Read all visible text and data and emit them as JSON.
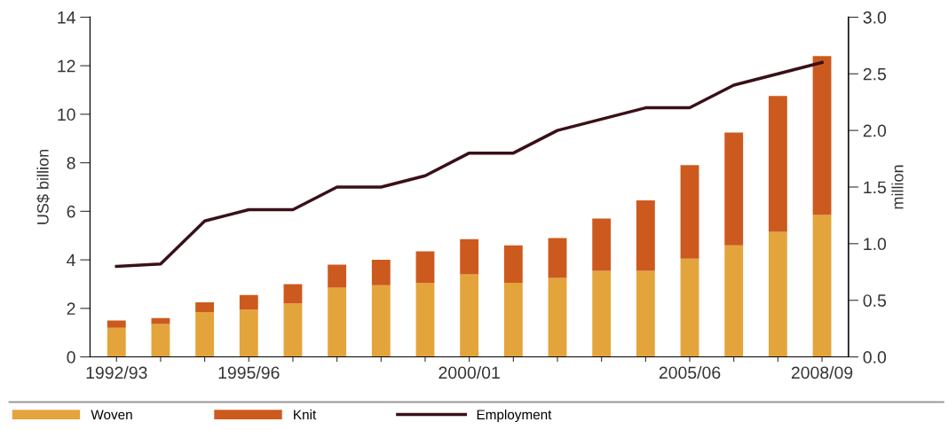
{
  "chart_data": {
    "type": "bar",
    "stacked": true,
    "ylabel": "US$ billion",
    "y2label": "million",
    "categories": [
      "1992/93",
      null,
      null,
      "1995/96",
      null,
      null,
      null,
      null,
      "2000/01",
      null,
      null,
      null,
      null,
      "2005/06",
      null,
      null,
      "2008/09"
    ],
    "series": [
      {
        "name": "Woven",
        "color": "#e4a43c",
        "values": [
          1.2,
          1.35,
          1.85,
          1.95,
          2.2,
          2.85,
          2.95,
          3.05,
          3.4,
          3.05,
          3.25,
          3.55,
          3.55,
          4.05,
          4.6,
          5.15,
          5.85
        ]
      },
      {
        "name": "Knit",
        "color": "#cc5a1e",
        "values": [
          0.3,
          0.25,
          0.4,
          0.6,
          0.8,
          0.95,
          1.05,
          1.3,
          1.45,
          1.55,
          1.65,
          2.15,
          2.9,
          3.85,
          4.65,
          5.6,
          6.55
        ]
      },
      {
        "name": "Employment",
        "type": "line",
        "axis": "y2",
        "color": "#3a1018",
        "values": [
          0.8,
          0.82,
          1.2,
          1.3,
          1.3,
          1.5,
          1.5,
          1.6,
          1.8,
          1.8,
          2.0,
          2.1,
          2.2,
          2.2,
          2.4,
          2.5,
          2.6
        ]
      }
    ],
    "ylim": [
      0,
      14
    ],
    "yticks": [
      0,
      2,
      4,
      6,
      8,
      10,
      12,
      14
    ],
    "y2lim": [
      0,
      3
    ],
    "y2ticks": [
      {
        "value": 0,
        "label": "0.0"
      },
      {
        "value": 0.5,
        "label": "0.5"
      },
      {
        "value": 1,
        "label": "1.0"
      },
      {
        "value": 1.5,
        "label": "1.5"
      },
      {
        "value": 2,
        "label": "2.0"
      },
      {
        "value": 2.5,
        "label": "2.5"
      },
      {
        "value": 3,
        "label": "3.0"
      }
    ],
    "grid": false,
    "legend": "bottom"
  }
}
